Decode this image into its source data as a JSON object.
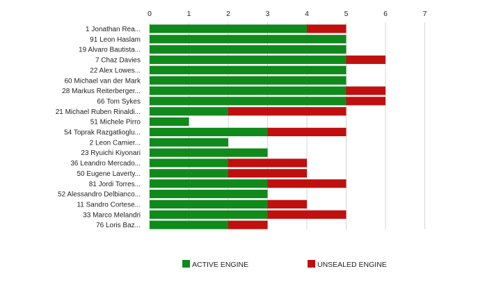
{
  "chart_data": {
    "type": "bar",
    "orientation": "horizontal",
    "stacked": true,
    "title": "",
    "xlabel": "",
    "ylabel": "",
    "xlim": [
      0,
      7
    ],
    "xticks": [
      "0",
      "1",
      "2",
      "3",
      "4",
      "5",
      "6",
      "7"
    ],
    "grid": true,
    "legend_position": "bottom",
    "categories": [
      "1 Jonathan Rea...",
      "91 Leon Haslam",
      "19 Alvaro Bautista...",
      "7 Chaz Davies",
      "22 Alex Lowes...",
      "60 Michael van der Mark",
      "28 Markus Reiterberger...",
      "66 Tom Sykes",
      "21 Michael Ruben Rinaldi...",
      "51 Michele Pirro",
      "54 Toprak Razgatlioglu...",
      "2 Leon Camier...",
      "23 Ryuichi Kiyonari",
      "36 Leandro Mercado...",
      "50 Eugene Laverty...",
      "81 Jordi Torres...",
      "52 Alessandro Delbianco...",
      "11 Sandro Cortese...",
      "33 Marco Melandri",
      "76 Loris Baz..."
    ],
    "series": [
      {
        "name": "ACTIVE ENGINE",
        "color": "#0f8a1b",
        "values": [
          4,
          5,
          5,
          5,
          5,
          5,
          5,
          5,
          2,
          1,
          3,
          2,
          3,
          2,
          2,
          3,
          3,
          3,
          3,
          2
        ]
      },
      {
        "name": "UNSEALED ENGINE",
        "color": "#c00f0f",
        "values": [
          1,
          0,
          0,
          1,
          0,
          0,
          1,
          1,
          3,
          0,
          2,
          0,
          0,
          2,
          2,
          2,
          0,
          1,
          2,
          1
        ]
      }
    ]
  }
}
